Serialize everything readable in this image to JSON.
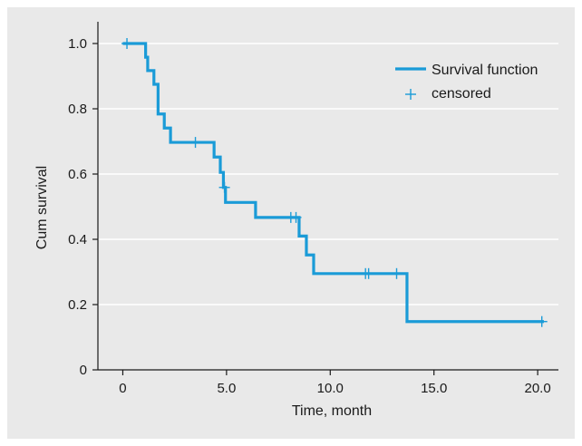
{
  "chart_data": {
    "type": "line",
    "subtype": "kaplan-meier-step",
    "xlabel": "Time, month",
    "ylabel": "Cum survival",
    "xlim": [
      -1.2,
      21.0
    ],
    "ylim": [
      0,
      1.05
    ],
    "x_ticks": [
      0,
      5,
      10,
      15,
      20
    ],
    "x_tick_labels": [
      "0",
      "5.0",
      "10.0",
      "15.0",
      "20.0"
    ],
    "y_ticks": [
      0,
      0.2,
      0.4,
      0.6,
      0.8,
      1.0
    ],
    "y_tick_labels": [
      "0",
      "0.2",
      "0.4",
      "0.6",
      "0.8",
      "1.0"
    ],
    "grid": "horizontal",
    "legend_position": "top-right",
    "colors": {
      "series": "#1a9bd7",
      "grid": "#ffffff",
      "panel": "#e9e9e9"
    },
    "series": [
      {
        "name": "Survival function",
        "steps": [
          [
            0,
            1.0
          ],
          [
            1.1,
            0.958
          ],
          [
            1.2,
            0.917
          ],
          [
            1.5,
            0.875
          ],
          [
            1.7,
            0.784
          ],
          [
            2.0,
            0.741
          ],
          [
            2.3,
            0.697
          ],
          [
            4.4,
            0.652
          ],
          [
            4.7,
            0.605
          ],
          [
            4.85,
            0.559
          ],
          [
            4.95,
            0.513
          ],
          [
            6.4,
            0.467
          ],
          [
            8.5,
            0.41
          ],
          [
            8.85,
            0.352
          ],
          [
            9.2,
            0.295
          ],
          [
            13.7,
            0.148
          ],
          [
            20.3,
            0.148
          ]
        ]
      }
    ],
    "censored": {
      "name": "censored",
      "points": [
        [
          0.2,
          1.0
        ],
        [
          3.5,
          0.697
        ],
        [
          4.9,
          0.559
        ],
        [
          8.1,
          0.467
        ],
        [
          8.35,
          0.467
        ],
        [
          11.7,
          0.295
        ],
        [
          11.85,
          0.295
        ],
        [
          13.2,
          0.295
        ],
        [
          20.2,
          0.148
        ]
      ]
    }
  }
}
